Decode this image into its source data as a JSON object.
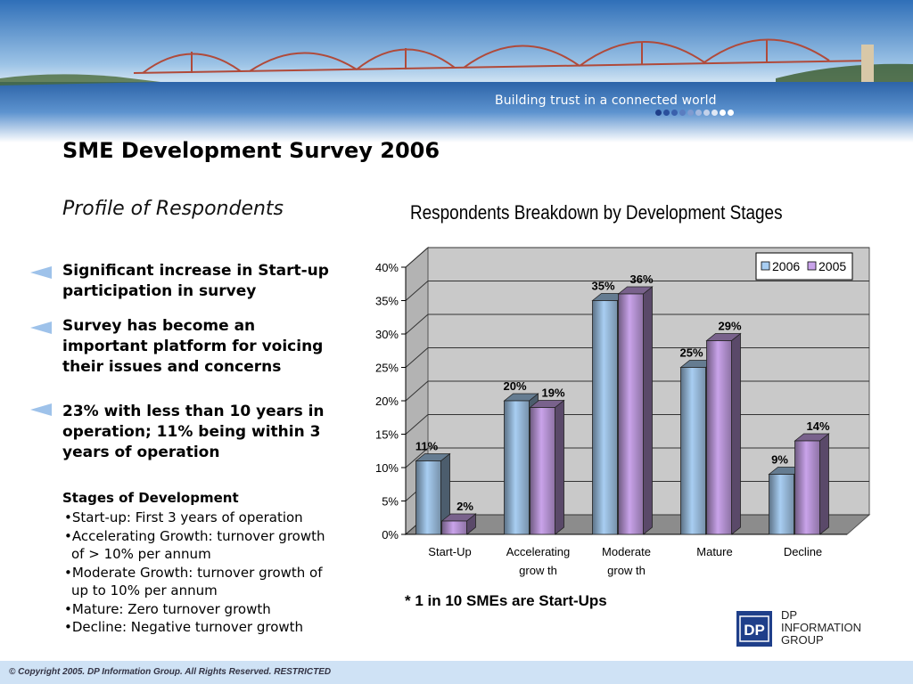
{
  "header": {
    "tagline": "Building trust in a connected world",
    "dot_colors": [
      "#1f3f8a",
      "#2a4f9c",
      "#3a60ac",
      "#5a7dc0",
      "#7f9bd0",
      "#a3b8de",
      "#c3d1ea",
      "#dfe7f4",
      "#ffffff",
      "#ffffff"
    ]
  },
  "slide": {
    "title": "SME Development Survey 2006",
    "subtitle": "Profile of Respondents"
  },
  "bullets": [
    "Significant increase in Start-up participation in survey",
    "Survey has become an important platform for voicing their issues and concerns",
    "23% with less than 10 years in operation; 11% being within 3 years of operation"
  ],
  "stages": {
    "title": "Stages of Development",
    "items": [
      "•Start-up: First 3 years of operation",
      "•Accelerating Growth: turnover growth of > 10% per annum",
      "•Moderate Growth: turnover growth of up to 10% per annum",
      "•Mature: Zero turnover growth",
      "•Decline: Negative turnover growth"
    ]
  },
  "chart_data": {
    "type": "bar",
    "title": "Respondents Breakdown by Development Stages",
    "categories": [
      [
        "Start-Up"
      ],
      [
        "Accelerating",
        "grow th"
      ],
      [
        "Moderate",
        "grow th"
      ],
      [
        "Mature"
      ],
      [
        "Decline"
      ]
    ],
    "series": [
      {
        "name": "2006",
        "values": [
          11,
          20,
          35,
          25,
          9
        ],
        "labels": [
          "11%",
          "20%",
          "35%",
          "25%",
          "9%"
        ],
        "color": "#a8cef2"
      },
      {
        "name": "2005",
        "values": [
          2,
          19,
          36,
          29,
          14
        ],
        "labels": [
          "2%",
          "19%",
          "36%",
          "29%",
          "14%"
        ],
        "color": "#c9a3ea"
      }
    ],
    "ylim": [
      0,
      40
    ],
    "y_ticks": [
      "0%",
      "5%",
      "10%",
      "15%",
      "20%",
      "25%",
      "30%",
      "35%",
      "40%"
    ],
    "grid": true,
    "legend": "top-right",
    "note": "* 1 in 10 SMEs are Start-Ups"
  },
  "logo": {
    "mark": "DP",
    "lines": [
      "DP",
      "INFORMATION",
      "GROUP"
    ]
  },
  "footer": {
    "copyright": "© Copyright 2005. DP Information Group. All Rights Reserved. RESTRICTED"
  }
}
